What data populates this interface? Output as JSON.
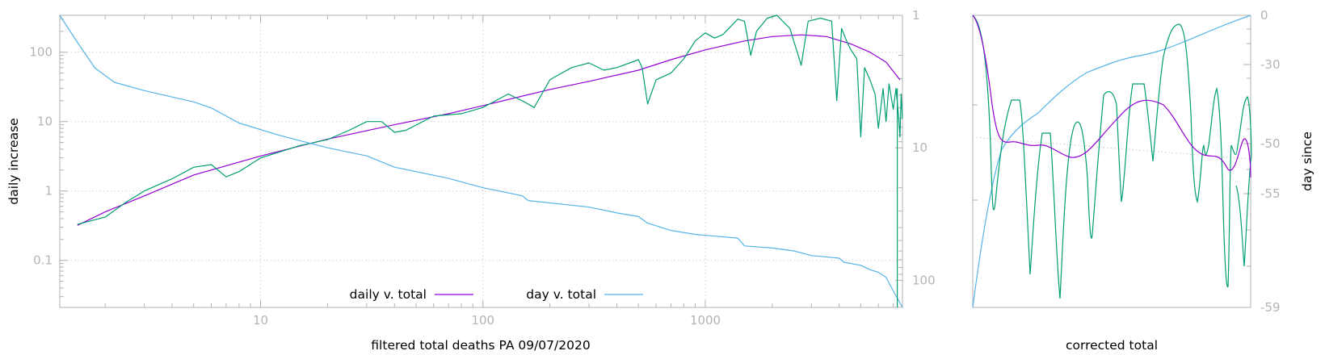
{
  "chart_data": [
    {
      "type": "line",
      "xlabel": "filtered total deaths PA 09/07/2020",
      "ylabel": "daily increase",
      "x_scale": "log",
      "y_scale": "log",
      "y2_scale": "log",
      "y2_reversed": true,
      "xlim": [
        1.25,
        7700
      ],
      "ylim": [
        0.021,
        340
      ],
      "y2lim": [
        1,
        160
      ],
      "x_ticks": [
        "10",
        "100",
        "1000"
      ],
      "x_tick_values": [
        10,
        100,
        1000
      ],
      "y_ticks": [
        "0.1",
        "1",
        "10",
        "100"
      ],
      "y_tick_values": [
        0.1,
        1,
        10,
        100
      ],
      "y2_ticks": [
        "1",
        "10",
        "100"
      ],
      "y2_tick_values": [
        1,
        10,
        100
      ],
      "grid": true,
      "legend_position": "bottom-center",
      "series": [
        {
          "name": "daily v. total",
          "color": "#9400d3",
          "axis": "y",
          "points": [
            [
              1.5,
              0.32
            ],
            [
              2,
              0.5
            ],
            [
              3,
              0.85
            ],
            [
              5,
              1.7
            ],
            [
              10,
              3.2
            ],
            [
              20,
              5.6
            ],
            [
              40,
              9
            ],
            [
              70,
              13
            ],
            [
              100,
              17
            ],
            [
              200,
              29
            ],
            [
              300,
              38
            ],
            [
              500,
              55
            ],
            [
              700,
              78
            ],
            [
              1000,
              108
            ],
            [
              1500,
              145
            ],
            [
              2000,
              168
            ],
            [
              2700,
              178
            ],
            [
              3500,
              168
            ],
            [
              4500,
              132
            ],
            [
              5500,
              100
            ],
            [
              6500,
              72
            ],
            [
              7500,
              40
            ]
          ]
        },
        {
          "name": "",
          "color": "#009e73",
          "axis": "y",
          "points": [
            [
              1.5,
              0.33
            ],
            [
              2,
              0.42
            ],
            [
              2.5,
              0.7
            ],
            [
              3,
              1.0
            ],
            [
              4,
              1.5
            ],
            [
              5,
              2.2
            ],
            [
              6,
              2.4
            ],
            [
              7,
              1.6
            ],
            [
              8,
              1.9
            ],
            [
              10,
              3.0
            ],
            [
              15,
              4.5
            ],
            [
              20,
              5.5
            ],
            [
              25,
              7.5
            ],
            [
              30,
              10
            ],
            [
              35,
              10
            ],
            [
              40,
              7
            ],
            [
              45,
              7.5
            ],
            [
              60,
              12
            ],
            [
              80,
              13
            ],
            [
              100,
              16
            ],
            [
              130,
              25
            ],
            [
              150,
              20
            ],
            [
              170,
              16
            ],
            [
              200,
              40
            ],
            [
              250,
              60
            ],
            [
              300,
              70
            ],
            [
              350,
              55
            ],
            [
              400,
              60
            ],
            [
              500,
              78
            ],
            [
              520,
              60
            ],
            [
              550,
              18
            ],
            [
              600,
              40
            ],
            [
              700,
              50
            ],
            [
              800,
              80
            ],
            [
              900,
              145
            ],
            [
              1000,
              190
            ],
            [
              1100,
              160
            ],
            [
              1200,
              180
            ],
            [
              1400,
              300
            ],
            [
              1500,
              280
            ],
            [
              1600,
              90
            ],
            [
              1700,
              200
            ],
            [
              1900,
              310
            ],
            [
              2100,
              340
            ],
            [
              2400,
              220
            ],
            [
              2700,
              65
            ],
            [
              2900,
              280
            ],
            [
              3300,
              310
            ],
            [
              3700,
              280
            ],
            [
              3900,
              20
            ],
            [
              4100,
              220
            ],
            [
              4300,
              150
            ],
            [
              4500,
              110
            ],
            [
              4800,
              80
            ],
            [
              5000,
              6
            ],
            [
              5200,
              60
            ],
            [
              5500,
              40
            ],
            [
              5800,
              25
            ],
            [
              6000,
              8
            ],
            [
              6300,
              30
            ],
            [
              6500,
              10
            ],
            [
              6700,
              35
            ],
            [
              7000,
              15
            ],
            [
              7200,
              30
            ],
            [
              7400,
              12
            ],
            [
              7500,
              6
            ],
            [
              7600,
              25
            ],
            [
              7700,
              11
            ]
          ]
        },
        {
          "name": "day v. total",
          "color": "#56b4e9",
          "axis": "y2",
          "points": [
            [
              1.25,
              1
            ],
            [
              1.5,
              1.6
            ],
            [
              1.8,
              2.5
            ],
            [
              2.2,
              3.2
            ],
            [
              3,
              3.7
            ],
            [
              5,
              4.5
            ],
            [
              6,
              5
            ],
            [
              8,
              6.5
            ],
            [
              12,
              8
            ],
            [
              20,
              10
            ],
            [
              30,
              11.5
            ],
            [
              40,
              14
            ],
            [
              70,
              17
            ],
            [
              100,
              20
            ],
            [
              150,
              23
            ],
            [
              160,
              25
            ],
            [
              300,
              28
            ],
            [
              400,
              31
            ],
            [
              500,
              33
            ],
            [
              550,
              37
            ],
            [
              700,
              42
            ],
            [
              900,
              45
            ],
            [
              1400,
              48
            ],
            [
              1500,
              55
            ],
            [
              2000,
              57
            ],
            [
              2500,
              60
            ],
            [
              3000,
              65
            ],
            [
              4000,
              68
            ],
            [
              4200,
              73
            ],
            [
              5000,
              77
            ],
            [
              5500,
              83
            ],
            [
              6000,
              87
            ],
            [
              6500,
              95
            ],
            [
              7000,
              120
            ],
            [
              7700,
              160
            ]
          ]
        }
      ]
    },
    {
      "type": "line",
      "xlabel": "corrected total",
      "y2label": "day since",
      "y2_scale": "log",
      "y2_ticks": [
        "0",
        "-30",
        "-50",
        "-55",
        "-59"
      ],
      "legend_position": "none",
      "series": [
        {
          "name": "",
          "color": "#9400d3",
          "description": "smooth correction curve"
        },
        {
          "name": "",
          "color": "#009e73",
          "description": "oscillating correction"
        },
        {
          "name": "",
          "color": "#56b4e9",
          "description": "day since curve"
        }
      ]
    }
  ]
}
